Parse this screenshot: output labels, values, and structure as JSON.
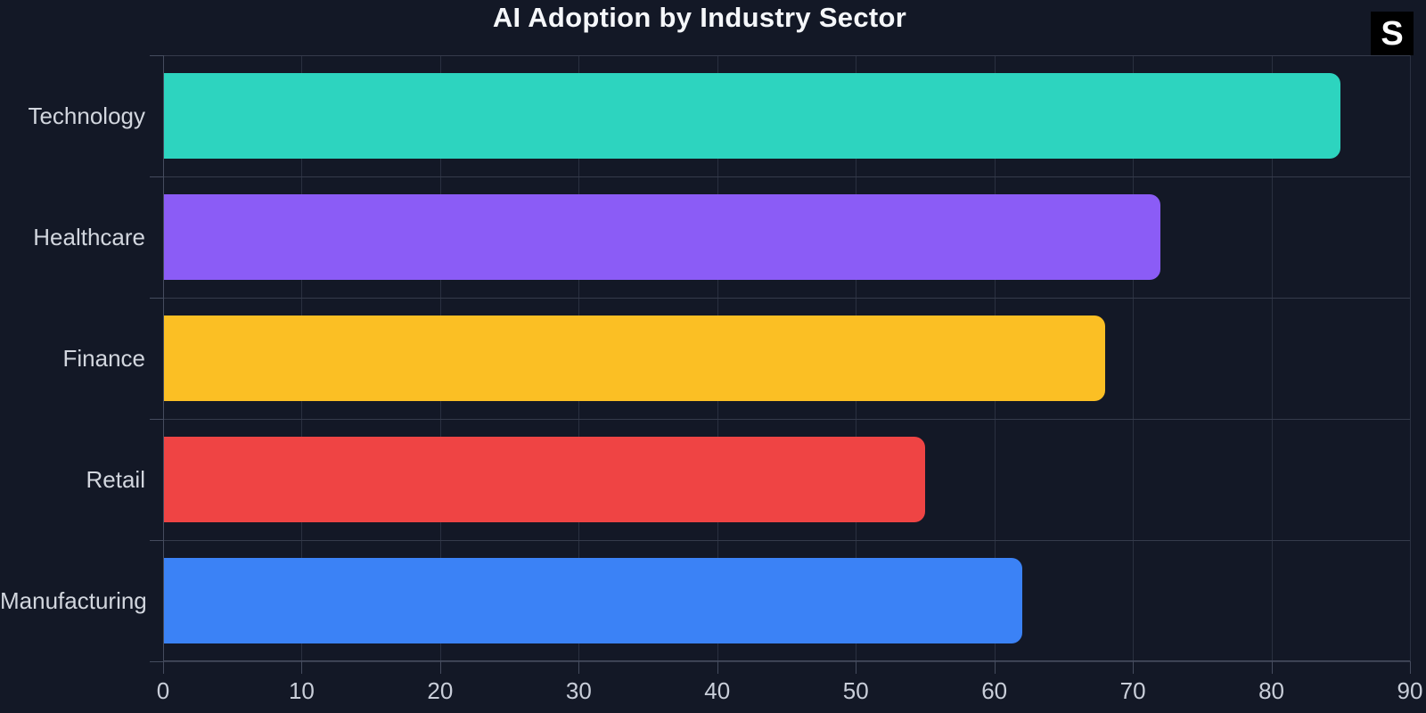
{
  "header": {
    "title": "AI Adoption by Industry Sector"
  },
  "badge": {
    "label": "S",
    "bg": "#000000",
    "color": "#ffffff"
  },
  "theme": {
    "background": "#131826",
    "grid_vertical": "#2a3040",
    "grid_horizontal": "#353b4b",
    "axis": "#454c5e",
    "tick_label_color": "#c9ced9",
    "category_label_color": "#d2d6de",
    "title_color": "#f5f7fa"
  },
  "chart_data": {
    "type": "bar",
    "orientation": "horizontal",
    "title": "AI Adoption by Industry Sector",
    "categories": [
      "Technology",
      "Healthcare",
      "Finance",
      "Retail",
      "Manufacturing"
    ],
    "values": [
      85,
      72,
      68,
      55,
      62
    ],
    "bar_colors": [
      "#2dd4bf",
      "#8b5cf6",
      "#fbbf24",
      "#ef4444",
      "#3b82f6"
    ],
    "xlabel": "",
    "ylabel": "",
    "xlim": [
      0,
      90
    ],
    "x_ticks": [
      0,
      10,
      20,
      30,
      40,
      50,
      60,
      70,
      80,
      90
    ],
    "grid": "on",
    "legend": "none"
  }
}
